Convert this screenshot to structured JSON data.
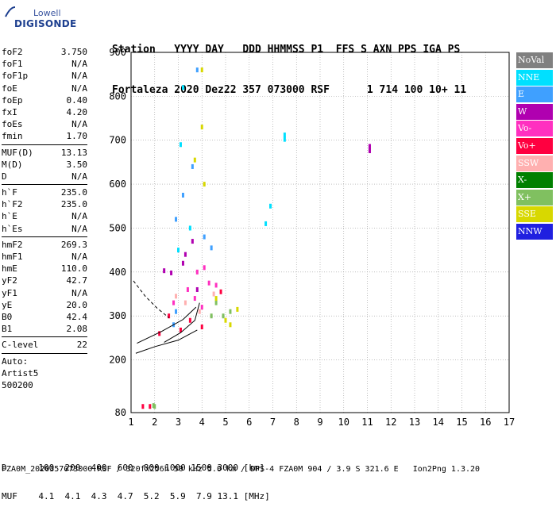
{
  "logo": {
    "line1": "Lowell",
    "line2": "DIGISONDE"
  },
  "header": {
    "row1": "Station   YYYY DAY   DDD HHMMSS P1  FFS S AXN PPS IGA PS",
    "row2": "Fortaleza 2020 Dez22 357 073000 RSF      1 714 100 10+ 11"
  },
  "panel": {
    "group1": [
      {
        "k": "foF2",
        "v": "3.750"
      },
      {
        "k": "foF1",
        "v": "N/A"
      },
      {
        "k": "foF1p",
        "v": "N/A"
      },
      {
        "k": "foE",
        "v": "N/A"
      },
      {
        "k": "foEp",
        "v": "0.40"
      },
      {
        "k": "fxI",
        "v": "4.20"
      },
      {
        "k": "foEs",
        "v": "N/A"
      },
      {
        "k": "fmin",
        "v": "1.70"
      }
    ],
    "group2": [
      {
        "k": "MUF(D)",
        "v": "13.13"
      },
      {
        "k": "M(D)",
        "v": "3.50"
      },
      {
        "k": "D",
        "v": "N/A"
      }
    ],
    "group3": [
      {
        "k": "h`F",
        "v": "235.0"
      },
      {
        "k": "h`F2",
        "v": "235.0"
      },
      {
        "k": "h`E",
        "v": "N/A"
      },
      {
        "k": "h`Es",
        "v": "N/A"
      }
    ],
    "group4": [
      {
        "k": "hmF2",
        "v": "269.3"
      },
      {
        "k": "hmF1",
        "v": "N/A"
      },
      {
        "k": "hmE",
        "v": "110.0"
      },
      {
        "k": "yF2",
        "v": "42.7"
      },
      {
        "k": "yF1",
        "v": "N/A"
      },
      {
        "k": "yE",
        "v": "20.0"
      },
      {
        "k": "B0",
        "v": "42.4"
      },
      {
        "k": "B1",
        "v": "2.08"
      }
    ],
    "group5": [
      {
        "k": "C-level",
        "v": "22"
      }
    ],
    "footer": [
      "Auto:",
      "Artist5",
      "500200"
    ]
  },
  "legend": [
    {
      "label": "NoVal",
      "color": "#808080"
    },
    {
      "label": "NNE",
      "color": "#00e0ff"
    },
    {
      "label": "E",
      "color": "#3fa0ff"
    },
    {
      "label": "W",
      "color": "#b000b0"
    },
    {
      "label": "Vo-",
      "color": "#ff30c0"
    },
    {
      "label": "Vo+",
      "color": "#ff0040"
    },
    {
      "label": "SSW",
      "color": "#ffb0b0"
    },
    {
      "label": "X-",
      "color": "#008000"
    },
    {
      "label": "X+",
      "color": "#80c060"
    },
    {
      "label": "SSE",
      "color": "#d8d800"
    },
    {
      "label": "NNW",
      "color": "#2020e0"
    }
  ],
  "footer": {
    "line1": "D      100  200  400  600  800 1000 1500 3000 [km]",
    "line2": "MUF    4.1  4.1  4.3  4.7  5.2  5.9  7.9 13.1 [MHz]",
    "line3": "FZA0M_2020357073000.RSF / 320fx256h 50 kHz 5.0 km / DPS-4 FZA0M 904 / 3.9 S 321.6 E   Ion2Png 1.3.20"
  },
  "chart_data": {
    "type": "scatter",
    "title": "",
    "xlabel": "",
    "ylabel": "",
    "xlim": [
      1,
      17
    ],
    "ylim": [
      80,
      900
    ],
    "x_ticks": [
      1,
      2,
      3,
      4,
      5,
      6,
      7,
      8,
      9,
      10,
      11,
      12,
      13,
      14,
      15,
      16,
      17
    ],
    "y_ticks": [
      80,
      200,
      300,
      400,
      500,
      600,
      700,
      800,
      900
    ],
    "grid": true,
    "legend_position": "right",
    "series": [
      {
        "name": "NNE",
        "points": [
          [
            7.5,
            712
          ],
          [
            7.5,
            702
          ],
          [
            6.9,
            550
          ],
          [
            6.7,
            510
          ],
          [
            3.1,
            690
          ],
          [
            3.2,
            820
          ],
          [
            3.5,
            500
          ],
          [
            3.0,
            450
          ]
        ]
      },
      {
        "name": "E",
        "points": [
          [
            3.8,
            860
          ],
          [
            3.6,
            640
          ],
          [
            3.2,
            575
          ],
          [
            2.9,
            520
          ],
          [
            4.1,
            480
          ],
          [
            4.4,
            455
          ],
          [
            2.9,
            310
          ],
          [
            2.8,
            280
          ]
        ]
      },
      {
        "name": "W",
        "points": [
          [
            11.1,
            686
          ],
          [
            11.1,
            676
          ],
          [
            2.4,
            403
          ],
          [
            2.7,
            398
          ],
          [
            3.3,
            440
          ],
          [
            3.6,
            470
          ],
          [
            3.2,
            420
          ],
          [
            3.8,
            360
          ]
        ]
      },
      {
        "name": "Vo-",
        "points": [
          [
            3.8,
            400
          ],
          [
            3.4,
            360
          ],
          [
            4.3,
            375
          ],
          [
            3.7,
            340
          ],
          [
            4.0,
            320
          ],
          [
            2.8,
            330
          ],
          [
            4.6,
            370
          ],
          [
            4.1,
            410
          ]
        ]
      },
      {
        "name": "Vo+",
        "points": [
          [
            1.5,
            94
          ],
          [
            1.8,
            94
          ],
          [
            2.6,
            300
          ],
          [
            3.5,
            290
          ],
          [
            4.0,
            275
          ],
          [
            3.1,
            268
          ],
          [
            4.8,
            355
          ],
          [
            2.2,
            260
          ]
        ]
      },
      {
        "name": "SSW",
        "points": [
          [
            3.9,
            310
          ],
          [
            4.5,
            350
          ],
          [
            3.3,
            330
          ],
          [
            2.9,
            345
          ]
        ]
      },
      {
        "name": "X+",
        "points": [
          [
            2.0,
            94
          ],
          [
            1.95,
            96
          ],
          [
            4.4,
            300
          ],
          [
            4.6,
            330
          ],
          [
            4.9,
            300
          ],
          [
            5.2,
            310
          ]
        ]
      },
      {
        "name": "SSE",
        "points": [
          [
            4.0,
            860
          ],
          [
            4.0,
            730
          ],
          [
            3.7,
            655
          ],
          [
            4.1,
            600
          ],
          [
            4.6,
            340
          ],
          [
            5.0,
            290
          ],
          [
            5.5,
            315
          ],
          [
            5.2,
            280
          ]
        ]
      }
    ],
    "curves": [
      {
        "name": "profile-1",
        "points": [
          [
            1.2,
            215
          ],
          [
            2.0,
            230
          ],
          [
            3.0,
            245
          ],
          [
            3.8,
            268
          ]
        ]
      },
      {
        "name": "profile-2",
        "points": [
          [
            1.25,
            238
          ],
          [
            2.3,
            265
          ],
          [
            3.2,
            292
          ],
          [
            3.75,
            320
          ]
        ]
      },
      {
        "name": "profile-3",
        "points": [
          [
            2.4,
            240
          ],
          [
            3.1,
            262
          ],
          [
            3.7,
            290
          ],
          [
            3.9,
            330
          ]
        ]
      },
      {
        "name": "profile-dashed",
        "points": [
          [
            1.1,
            380
          ],
          [
            1.6,
            345
          ],
          [
            2.1,
            318
          ],
          [
            2.6,
            296
          ]
        ]
      }
    ]
  }
}
